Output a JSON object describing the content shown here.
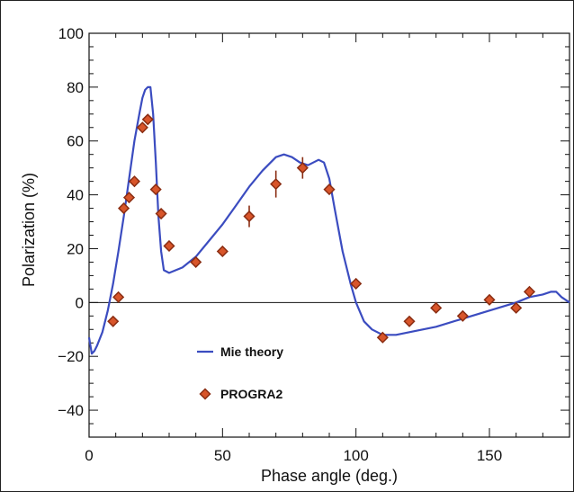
{
  "chart_data": {
    "type": "line",
    "xlabel": "Phase angle (deg.)",
    "ylabel": "Polarization (%)",
    "xlim": [
      0,
      180
    ],
    "ylim": [
      -50,
      100
    ],
    "xticks": [
      0,
      50,
      100,
      150
    ],
    "yticks": [
      100,
      80,
      60,
      40,
      20,
      0,
      -20,
      -40
    ],
    "xtick_labels": [
      "0",
      "50",
      "100",
      "150"
    ],
    "ytick_labels": [
      "100",
      "80",
      "60",
      "40",
      "20",
      "0",
      "−20",
      "−40"
    ],
    "zero_line": true,
    "grid": false,
    "legend_position": "lower-left",
    "colors": {
      "line": "#3b4cc0",
      "marker_fill": "#d8552a",
      "marker_edge": "#8a2d12",
      "errorbar": "#8a2d12"
    },
    "series": [
      {
        "name": "Mie theory",
        "kind": "line",
        "x": [
          0,
          1,
          2,
          3,
          5,
          7,
          9,
          11,
          13,
          15,
          17,
          19,
          20,
          21,
          22,
          23,
          24,
          25,
          26,
          27,
          28,
          30,
          35,
          40,
          45,
          50,
          55,
          60,
          65,
          70,
          73,
          76,
          79,
          82,
          84,
          86,
          88,
          90,
          92,
          95,
          98,
          100,
          103,
          106,
          110,
          115,
          120,
          130,
          140,
          150,
          160,
          165,
          170,
          173,
          175,
          177,
          180
        ],
        "y": [
          -13,
          -19,
          -18,
          -16,
          -11,
          -3,
          7,
          19,
          32,
          46,
          60,
          71,
          76,
          79,
          80,
          80,
          70,
          52,
          32,
          19,
          12,
          11,
          13,
          17,
          23,
          29,
          36,
          43,
          49,
          54,
          55,
          54,
          52,
          51,
          52,
          53,
          52,
          46,
          35,
          19,
          7,
          0,
          -7,
          -10,
          -12,
          -12,
          -11,
          -9,
          -6,
          -3,
          0,
          2,
          3,
          4,
          4,
          2,
          0
        ]
      },
      {
        "name": "PROGRA2",
        "kind": "scatter",
        "marker": "diamond",
        "x": [
          9,
          11,
          13,
          15,
          17,
          20,
          22,
          25,
          27,
          30,
          40,
          50,
          60,
          70,
          80,
          90,
          100,
          110,
          120,
          130,
          140,
          150,
          160,
          165
        ],
        "y": [
          -7,
          2,
          35,
          39,
          45,
          65,
          68,
          42,
          33,
          21,
          15,
          19,
          32,
          44,
          50,
          42,
          7,
          -13,
          -7,
          -2,
          -5,
          1,
          -2,
          4
        ],
        "yerr": [
          0,
          0,
          0,
          0,
          0,
          0,
          0,
          0,
          0,
          0,
          0,
          0,
          4,
          5,
          4,
          0,
          0,
          0,
          0,
          0,
          0,
          0,
          0,
          0
        ]
      }
    ]
  }
}
